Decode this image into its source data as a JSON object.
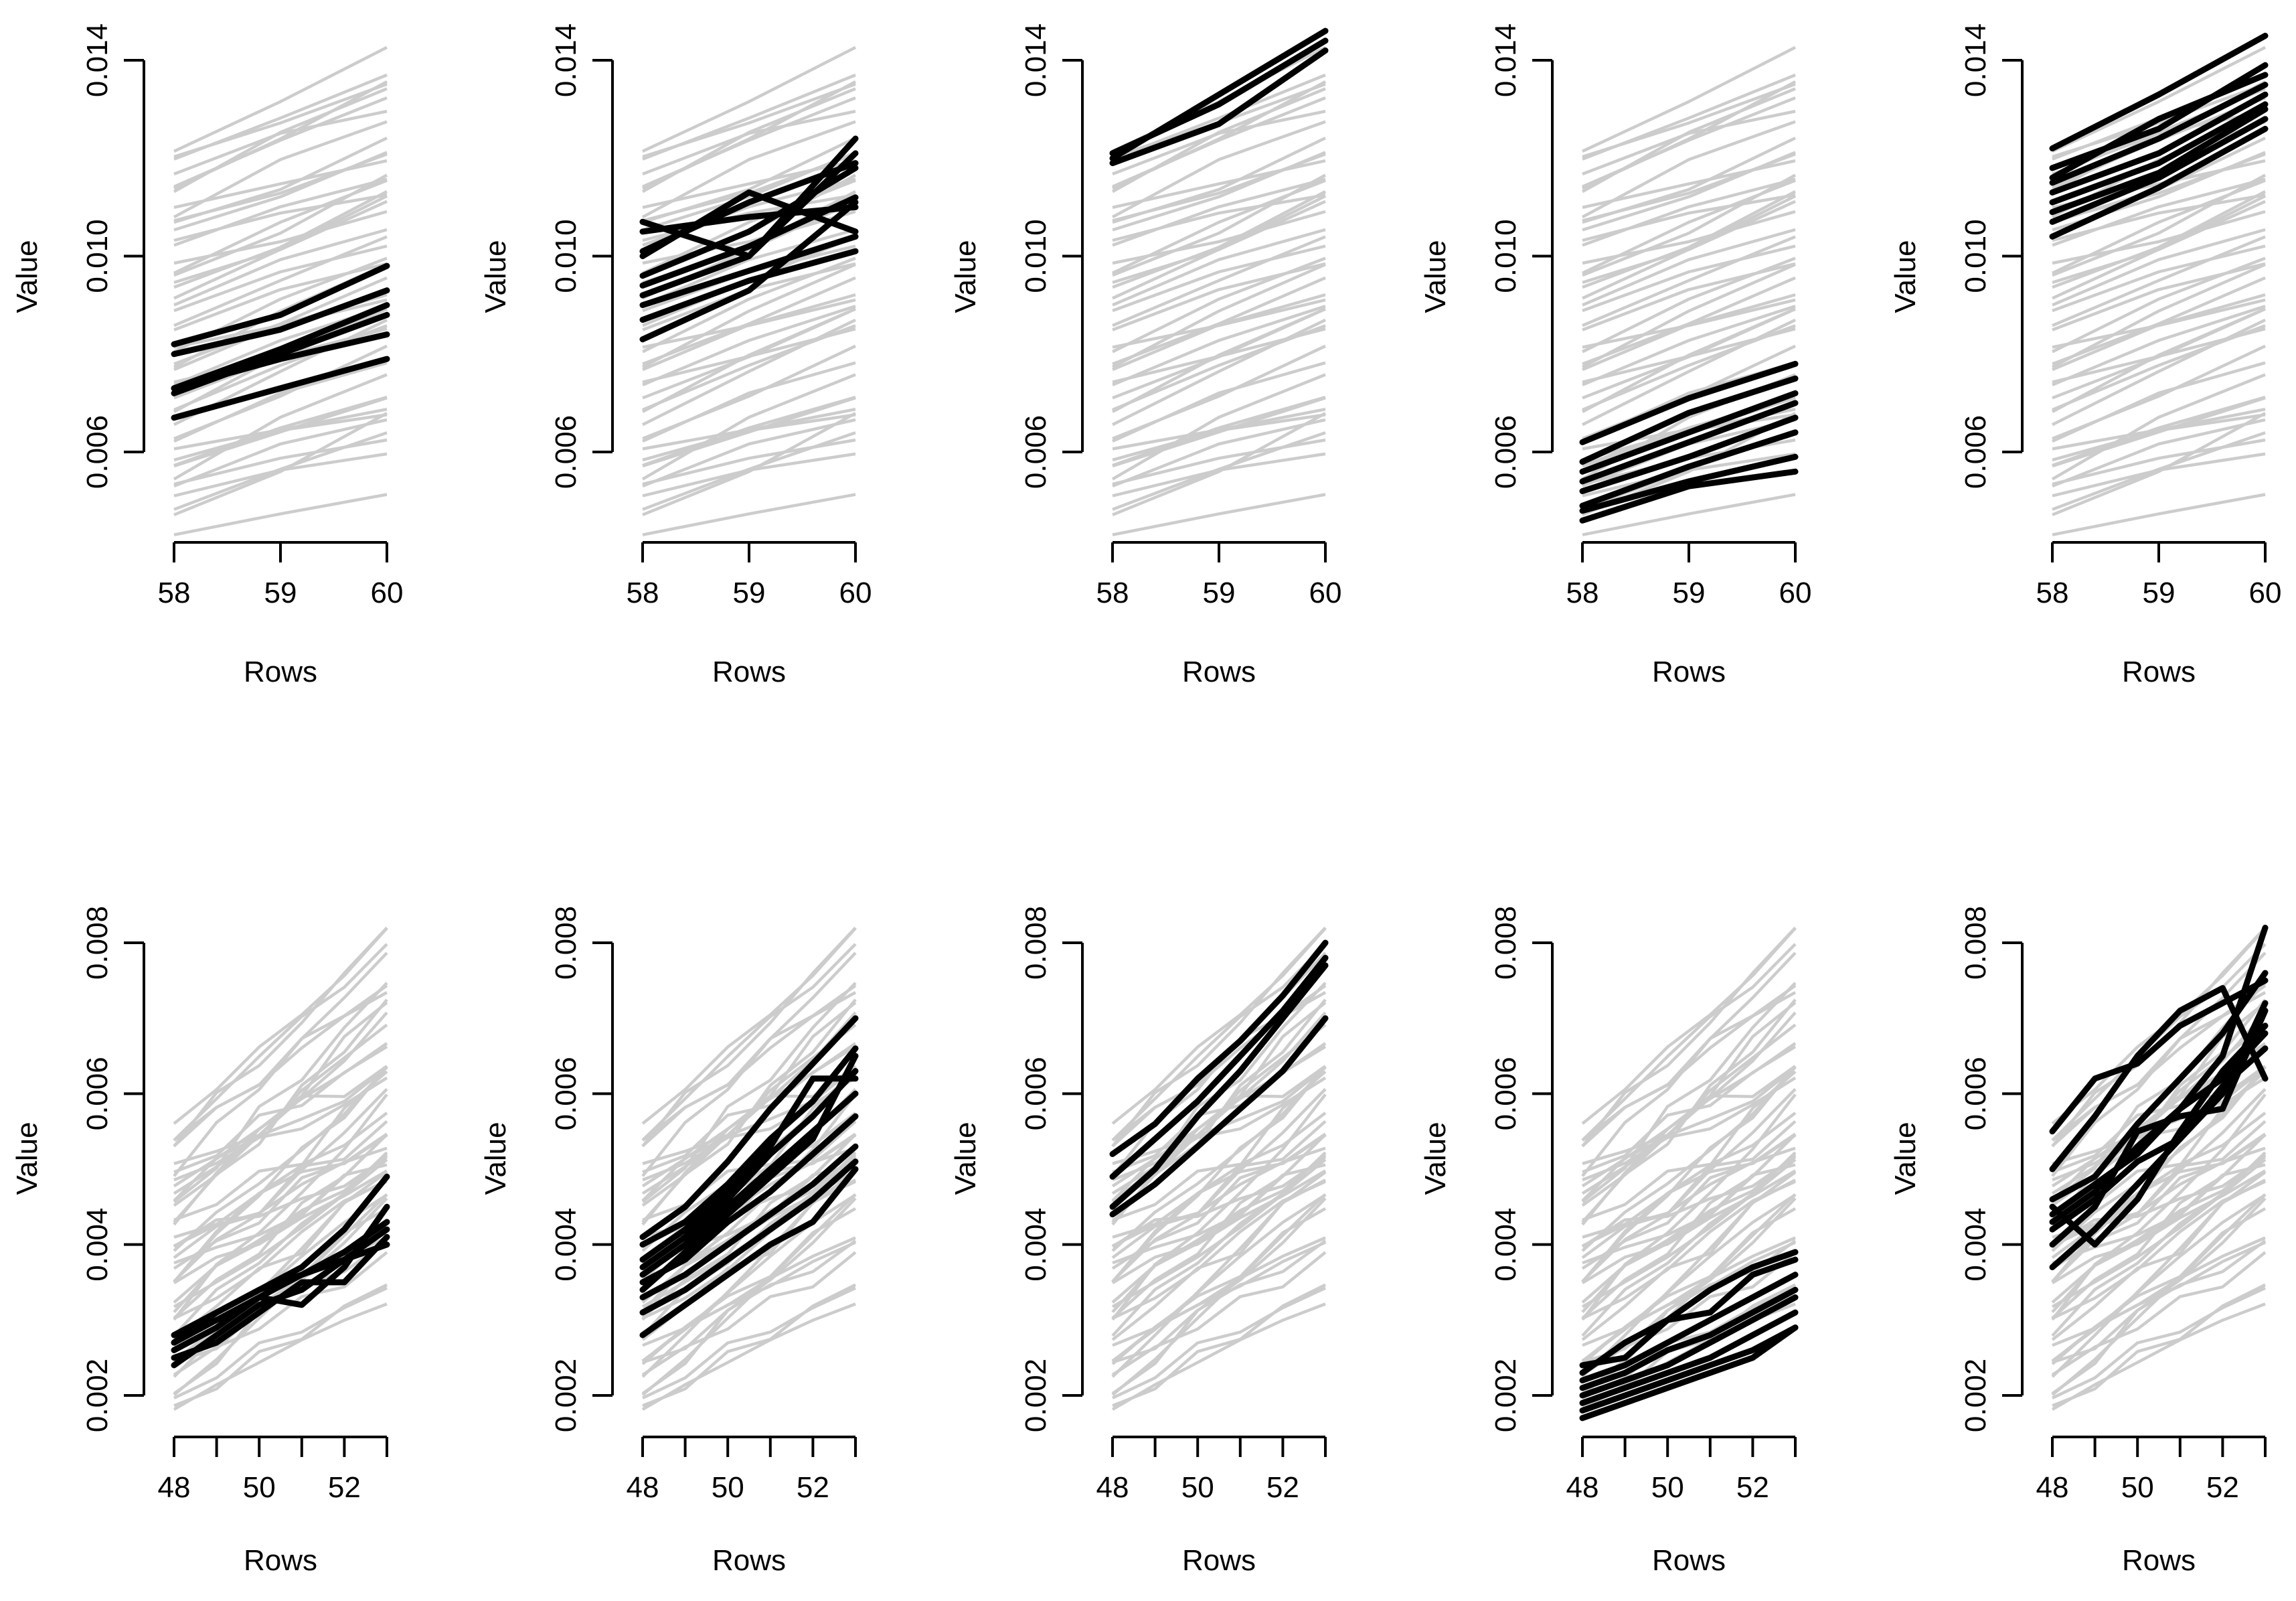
{
  "chart_data": [
    {
      "type": "line",
      "panel": "row1-col1",
      "xlabel": "Rows",
      "ylabel": "Value",
      "xlim": [
        58,
        60
      ],
      "ylim": [
        0.006,
        0.014
      ],
      "x_ticks": [
        "58",
        "59",
        "60"
      ],
      "y_ticks": [
        "0.006",
        "0.010",
        "0.014"
      ],
      "x": [
        58,
        59,
        60
      ],
      "highlighted": [
        [
          0.0082,
          0.0088,
          0.0098
        ],
        [
          0.008,
          0.0085,
          0.0093
        ],
        [
          0.0073,
          0.0081,
          0.009
        ],
        [
          0.0072,
          0.008,
          0.0088
        ],
        [
          0.0067,
          0.0073,
          0.0079
        ],
        [
          0.0073,
          0.0079,
          0.0084
        ]
      ]
    },
    {
      "type": "line",
      "panel": "row1-col2",
      "xlabel": "Rows",
      "ylabel": "Value",
      "xlim": [
        58,
        60
      ],
      "ylim": [
        0.006,
        0.014
      ],
      "x_ticks": [
        "58",
        "59",
        "60"
      ],
      "y_ticks": [
        "0.006",
        "0.010",
        "0.014"
      ],
      "x": [
        58,
        59,
        60
      ],
      "highlighted": [
        [
          0.0107,
          0.01,
          0.0124
        ],
        [
          0.0105,
          0.0108,
          0.011
        ],
        [
          0.01,
          0.0113,
          0.0105
        ],
        [
          0.0096,
          0.0105,
          0.0118
        ],
        [
          0.0094,
          0.0102,
          0.0112
        ],
        [
          0.0092,
          0.01,
          0.0121
        ],
        [
          0.009,
          0.0097,
          0.0104
        ],
        [
          0.0087,
          0.0095,
          0.0101
        ],
        [
          0.0083,
          0.0093,
          0.0111
        ],
        [
          0.0101,
          0.0111,
          0.0119
        ]
      ]
    },
    {
      "type": "line",
      "panel": "row1-col3",
      "xlabel": "Rows",
      "ylabel": "Value",
      "xlim": [
        58,
        60
      ],
      "ylim": [
        0.006,
        0.014
      ],
      "x_ticks": [
        "58",
        "59",
        "60"
      ],
      "y_ticks": [
        "0.006",
        "0.010",
        "0.014"
      ],
      "x": [
        58,
        59,
        60
      ],
      "highlighted": [
        [
          0.012,
          0.0133,
          0.0146
        ],
        [
          0.0119,
          0.0127,
          0.0142
        ],
        [
          0.0121,
          0.0131,
          0.0144
        ]
      ]
    },
    {
      "type": "line",
      "panel": "row1-col4",
      "xlabel": "Rows",
      "ylabel": "Value",
      "xlim": [
        58,
        60
      ],
      "ylim": [
        0.006,
        0.014
      ],
      "x_ticks": [
        "58",
        "59",
        "60"
      ],
      "y_ticks": [
        "0.006",
        "0.010",
        "0.014"
      ],
      "x": [
        58,
        59,
        60
      ],
      "highlighted": [
        [
          0.0062,
          0.0071,
          0.0078
        ],
        [
          0.0058,
          0.0068,
          0.0075
        ],
        [
          0.0056,
          0.0064,
          0.0072
        ],
        [
          0.0054,
          0.0062,
          0.007
        ],
        [
          0.0052,
          0.0059,
          0.0067
        ],
        [
          0.0049,
          0.0057,
          0.0064
        ],
        [
          0.0048,
          0.0054,
          0.0059
        ],
        [
          0.0046,
          0.0053,
          0.0056
        ]
      ]
    },
    {
      "type": "line",
      "panel": "row1-col5",
      "xlabel": "Rows",
      "ylabel": "Value",
      "xlim": [
        58,
        60
      ],
      "ylim": [
        0.006,
        0.014
      ],
      "x_ticks": [
        "58",
        "59",
        "60"
      ],
      "y_ticks": [
        "0.006",
        "0.010",
        "0.014"
      ],
      "x": [
        58,
        59,
        60
      ],
      "highlighted": [
        [
          0.0122,
          0.0133,
          0.0145
        ],
        [
          0.0118,
          0.0126,
          0.0139
        ],
        [
          0.0115,
          0.0124,
          0.0135
        ],
        [
          0.0113,
          0.0121,
          0.0133
        ],
        [
          0.0111,
          0.0119,
          0.0131
        ],
        [
          0.0109,
          0.0117,
          0.013
        ],
        [
          0.0107,
          0.0116,
          0.0128
        ],
        [
          0.0104,
          0.0114,
          0.0126
        ],
        [
          0.0116,
          0.0128,
          0.0137
        ]
      ]
    },
    {
      "type": "line",
      "panel": "row2-col1",
      "xlabel": "Rows",
      "ylabel": "Value",
      "xlim": [
        48,
        53
      ],
      "ylim": [
        0.002,
        0.008
      ],
      "x_ticks": [
        "48",
        "50",
        "52"
      ],
      "y_ticks": [
        "0.002",
        "0.004",
        "0.006",
        "0.008"
      ],
      "x": [
        48,
        49,
        50,
        51,
        52,
        53
      ],
      "highlighted": [
        [
          0.0028,
          0.0031,
          0.0034,
          0.0037,
          0.0042,
          0.0049
        ],
        [
          0.0027,
          0.003,
          0.0033,
          0.0036,
          0.0039,
          0.0043
        ],
        [
          0.0026,
          0.0029,
          0.0033,
          0.0032,
          0.0037,
          0.0045
        ],
        [
          0.0025,
          0.0027,
          0.0031,
          0.0035,
          0.0035,
          0.0041
        ],
        [
          0.0024,
          0.0028,
          0.0032,
          0.0034,
          0.0038,
          0.0042
        ],
        [
          0.0027,
          0.0031,
          0.0034,
          0.0036,
          0.0038,
          0.004
        ]
      ]
    },
    {
      "type": "line",
      "panel": "row2-col2",
      "xlabel": "Rows",
      "ylabel": "Value",
      "xlim": [
        48,
        53
      ],
      "ylim": [
        0.002,
        0.008
      ],
      "x_ticks": [
        "48",
        "50",
        "52"
      ],
      "y_ticks": [
        "0.002",
        "0.004",
        "0.006",
        "0.008"
      ],
      "x": [
        48,
        49,
        50,
        51,
        52,
        53
      ],
      "highlighted": [
        [
          0.0041,
          0.0045,
          0.0051,
          0.0058,
          0.0064,
          0.007
        ],
        [
          0.004,
          0.0043,
          0.0048,
          0.0054,
          0.0059,
          0.0066
        ],
        [
          0.0037,
          0.0041,
          0.0046,
          0.0052,
          0.0057,
          0.0063
        ],
        [
          0.0036,
          0.004,
          0.0045,
          0.005,
          0.0055,
          0.006
        ],
        [
          0.0035,
          0.0038,
          0.0043,
          0.0047,
          0.0052,
          0.0057
        ],
        [
          0.0033,
          0.0036,
          0.004,
          0.0044,
          0.0048,
          0.0053
        ],
        [
          0.0031,
          0.0034,
          0.0038,
          0.0042,
          0.0046,
          0.0051
        ],
        [
          0.0028,
          0.0032,
          0.0036,
          0.004,
          0.0043,
          0.005
        ],
        [
          0.0038,
          0.0042,
          0.0047,
          0.0053,
          0.0062,
          0.0062
        ],
        [
          0.0034,
          0.0039,
          0.0044,
          0.0049,
          0.0054,
          0.0065
        ]
      ]
    },
    {
      "type": "line",
      "panel": "row2-col3",
      "xlabel": "Rows",
      "ylabel": "Value",
      "xlim": [
        48,
        53
      ],
      "ylim": [
        0.002,
        0.008
      ],
      "x_ticks": [
        "48",
        "50",
        "52"
      ],
      "y_ticks": [
        "0.002",
        "0.004",
        "0.006",
        "0.008"
      ],
      "x": [
        48,
        49,
        50,
        51,
        52,
        53
      ],
      "highlighted": [
        [
          0.0052,
          0.0056,
          0.0062,
          0.0067,
          0.0073,
          0.008
        ],
        [
          0.0049,
          0.0054,
          0.0059,
          0.0065,
          0.0071,
          0.0078
        ],
        [
          0.0044,
          0.0048,
          0.0053,
          0.0058,
          0.0063,
          0.007
        ],
        [
          0.0045,
          0.005,
          0.0057,
          0.0063,
          0.007,
          0.0077
        ]
      ]
    },
    {
      "type": "line",
      "panel": "row2-col4",
      "xlabel": "Rows",
      "ylabel": "Value",
      "xlim": [
        48,
        53
      ],
      "ylim": [
        0.002,
        0.008
      ],
      "x_ticks": [
        "48",
        "50",
        "52"
      ],
      "y_ticks": [
        "0.002",
        "0.004",
        "0.006",
        "0.008"
      ],
      "x": [
        48,
        49,
        50,
        51,
        52,
        53
      ],
      "highlighted": [
        [
          0.0024,
          0.0025,
          0.003,
          0.0034,
          0.0037,
          0.0039
        ],
        [
          0.0023,
          0.0027,
          0.003,
          0.0031,
          0.0036,
          0.0038
        ],
        [
          0.0022,
          0.0024,
          0.0027,
          0.003,
          0.0033,
          0.0036
        ],
        [
          0.0021,
          0.0023,
          0.0026,
          0.0028,
          0.0031,
          0.0034
        ],
        [
          0.002,
          0.0022,
          0.0024,
          0.0027,
          0.003,
          0.0033
        ],
        [
          0.0019,
          0.0021,
          0.0023,
          0.0025,
          0.0028,
          0.0031
        ],
        [
          0.0018,
          0.002,
          0.0022,
          0.0024,
          0.0026,
          0.0029
        ],
        [
          0.0017,
          0.0019,
          0.0021,
          0.0023,
          0.0025,
          0.0029
        ]
      ]
    },
    {
      "type": "line",
      "panel": "row2-col5",
      "xlabel": "Rows",
      "ylabel": "Value",
      "xlim": [
        48,
        53
      ],
      "ylim": [
        0.002,
        0.008
      ],
      "x_ticks": [
        "48",
        "50",
        "52"
      ],
      "y_ticks": [
        "0.002",
        "0.004",
        "0.006",
        "0.008"
      ],
      "x": [
        48,
        49,
        50,
        51,
        52,
        53
      ],
      "highlighted": [
        [
          0.0055,
          0.0062,
          0.0064,
          0.0069,
          0.0072,
          0.0075
        ],
        [
          0.005,
          0.0057,
          0.0065,
          0.0071,
          0.0074,
          0.0062
        ],
        [
          0.0046,
          0.0049,
          0.0056,
          0.0062,
          0.0068,
          0.0076
        ],
        [
          0.0044,
          0.0048,
          0.0052,
          0.0058,
          0.0065,
          0.0082
        ],
        [
          0.0043,
          0.0047,
          0.0053,
          0.0058,
          0.0062,
          0.0068
        ],
        [
          0.0042,
          0.0046,
          0.0051,
          0.0054,
          0.0061,
          0.0066
        ],
        [
          0.004,
          0.0045,
          0.0055,
          0.0057,
          0.0058,
          0.0071
        ],
        [
          0.0037,
          0.0042,
          0.0048,
          0.0054,
          0.006,
          0.0072
        ],
        [
          0.0045,
          0.004,
          0.0046,
          0.0055,
          0.0063,
          0.0069
        ]
      ]
    }
  ]
}
